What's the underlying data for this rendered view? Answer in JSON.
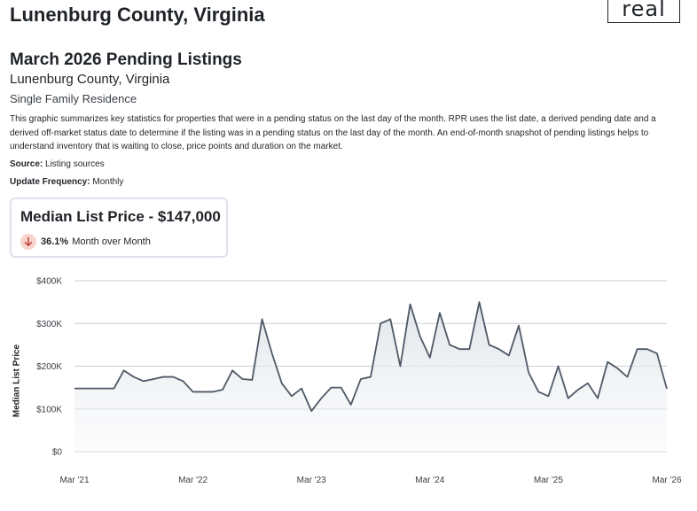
{
  "header": {
    "county_title": "Lunenburg County, Virginia",
    "logo_text": "real"
  },
  "report": {
    "title": "March 2026 Pending Listings",
    "subtitle": "Lunenburg County, Virginia",
    "property_type": "Single Family Residence",
    "description": "This graphic summarizes key statistics for properties that were in a pending status on the last day of the month. RPR uses the list date, a derived pending date and a derived off-market status date to determine if the listing was in a pending status on the last day of the month. An end-of-month snapshot of pending listings helps to understand inventory that is waiting to close, price points and duration on the market.",
    "source_label": "Source:",
    "source_value": "Listing sources",
    "frequency_label": "Update Frequency:",
    "frequency_value": "Monthly"
  },
  "kpi": {
    "title": "Median List Price - $147,000",
    "change_value": "36.1%",
    "change_label": "Month over Month",
    "change_direction": "down",
    "icon": "arrow-down-icon",
    "icon_color": "#c0392b",
    "icon_bg": "#f8d3cd"
  },
  "chart_data": {
    "type": "area",
    "ylabel": "Median List Price",
    "xlabel": "",
    "ylim": [
      0,
      400000
    ],
    "y_ticks": [
      0,
      100000,
      200000,
      300000,
      400000
    ],
    "y_tick_labels": [
      "$0",
      "$100K",
      "$200K",
      "$300K",
      "$400K"
    ],
    "x_tick_labels": [
      "Mar '21",
      "Mar '22",
      "Mar '23",
      "Mar '24",
      "Mar '25",
      "Mar '26"
    ],
    "x_tick_month_index": [
      0,
      12,
      24,
      36,
      48,
      60
    ],
    "grid": true,
    "line_color": "#4f5966",
    "series": [
      {
        "values": [
          148000,
          148000,
          148000,
          148000,
          148000,
          190000,
          175000,
          165000,
          170000,
          175000,
          175000,
          165000,
          140000,
          140000,
          140000,
          145000,
          190000,
          170000,
          168000,
          310000,
          230000,
          160000,
          130000,
          148000,
          95000,
          125000,
          150000,
          150000,
          110000,
          170000,
          175000,
          300000,
          310000,
          200000,
          345000,
          270000,
          220000,
          325000,
          250000,
          240000,
          240000,
          350000,
          250000,
          240000,
          225000,
          295000,
          185000,
          140000,
          130000,
          200000,
          125000,
          145000,
          160000,
          125000,
          210000,
          195000,
          175000,
          240000,
          240000,
          230000,
          147000
        ]
      }
    ]
  }
}
